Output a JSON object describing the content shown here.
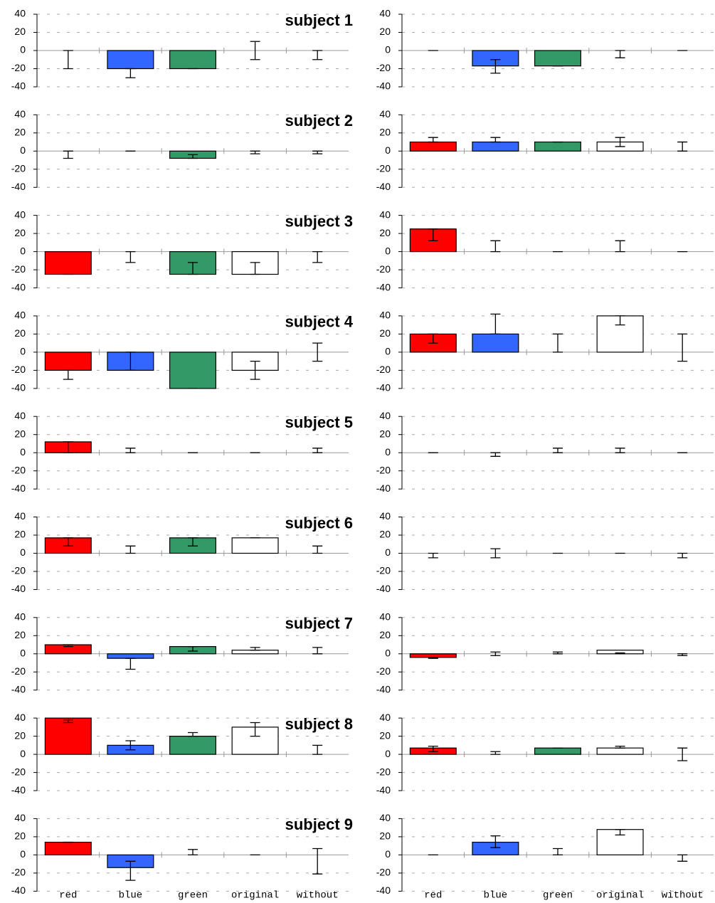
{
  "chart_data": {
    "type": "bar",
    "categories": [
      "red",
      "blue",
      "green",
      "original",
      "without"
    ],
    "colors": [
      "#ff0000",
      "#3366ff",
      "#339966",
      "#ffffff",
      "#ffffff"
    ],
    "ylim": [
      -40,
      40
    ],
    "yticks": [
      -40,
      -20,
      0,
      20,
      40
    ],
    "grid": true,
    "panels": [
      {
        "title": "subject 1",
        "values": [
          0,
          -20,
          -20,
          0,
          0
        ],
        "low": [
          -20,
          -30,
          -20,
          -10,
          -10
        ],
        "high": [
          0,
          -20,
          -20,
          10,
          0
        ]
      },
      {
        "values": [
          0,
          -17,
          -17,
          0,
          0
        ],
        "low": [
          0,
          -25,
          -17,
          -8,
          0
        ],
        "high": [
          0,
          -10,
          -17,
          0,
          0
        ]
      },
      {
        "title": "subject 2",
        "values": [
          0,
          0,
          -8,
          0,
          0
        ],
        "low": [
          -8,
          0,
          -8,
          -3,
          -3
        ],
        "high": [
          0,
          0,
          -4,
          0,
          0
        ]
      },
      {
        "values": [
          10,
          10,
          10,
          10,
          0
        ],
        "low": [
          10,
          10,
          10,
          5,
          0
        ],
        "high": [
          15,
          15,
          10,
          15,
          10
        ]
      },
      {
        "title": "subject 3",
        "values": [
          -25,
          0,
          -25,
          -25,
          0
        ],
        "low": [
          -25,
          -12,
          -25,
          -25,
          -12
        ],
        "high": [
          -25,
          0,
          -12,
          -12,
          0
        ]
      },
      {
        "values": [
          25,
          0,
          0,
          0,
          0
        ],
        "low": [
          12,
          0,
          0,
          0,
          0
        ],
        "high": [
          25,
          12,
          0,
          12,
          0
        ]
      },
      {
        "title": "subject 4",
        "values": [
          -20,
          -20,
          -40,
          -20,
          0
        ],
        "low": [
          -30,
          -20,
          -40,
          -30,
          -10
        ],
        "high": [
          -20,
          0,
          -40,
          -10,
          10
        ]
      },
      {
        "values": [
          20,
          20,
          0,
          40,
          0
        ],
        "low": [
          10,
          20,
          0,
          30,
          -10
        ],
        "high": [
          20,
          42,
          20,
          40,
          20
        ]
      },
      {
        "title": "subject 5",
        "values": [
          12,
          0,
          0,
          0,
          0
        ],
        "low": [
          0,
          0,
          0,
          0,
          0
        ],
        "high": [
          12,
          5,
          0,
          0,
          5
        ]
      },
      {
        "values": [
          0,
          0,
          0,
          0,
          0
        ],
        "low": [
          0,
          -4,
          0,
          0,
          0
        ],
        "high": [
          0,
          0,
          5,
          5,
          0
        ]
      },
      {
        "title": "subject 6",
        "values": [
          17,
          0,
          17,
          17,
          0
        ],
        "low": [
          8,
          0,
          8,
          17,
          0
        ],
        "high": [
          17,
          8,
          17,
          17,
          8
        ]
      },
      {
        "values": [
          0,
          0,
          0,
          0,
          0
        ],
        "low": [
          -5,
          -5,
          0,
          0,
          -5
        ],
        "high": [
          0,
          5,
          0,
          0,
          0
        ]
      },
      {
        "title": "subject 7",
        "values": [
          10,
          -5,
          8,
          4,
          0
        ],
        "low": [
          8,
          -17,
          3,
          4,
          0
        ],
        "high": [
          10,
          -5,
          8,
          7,
          7
        ]
      },
      {
        "values": [
          -4,
          0,
          0,
          4,
          0
        ],
        "low": [
          -5,
          -2,
          0,
          0,
          -2
        ],
        "high": [
          -4,
          2,
          2,
          1,
          0
        ]
      },
      {
        "title": "subject 8",
        "values": [
          40,
          10,
          20,
          30,
          0
        ],
        "low": [
          35,
          5,
          20,
          20,
          0
        ],
        "high": [
          38,
          15,
          24,
          35,
          10
        ]
      },
      {
        "values": [
          7,
          0,
          7,
          7,
          0
        ],
        "low": [
          3,
          0,
          7,
          7,
          -7
        ],
        "high": [
          9,
          3,
          7,
          9,
          7
        ]
      },
      {
        "title": "subject 9",
        "values": [
          14,
          -14,
          0,
          0,
          0
        ],
        "low": [
          14,
          -28,
          0,
          0,
          -21
        ],
        "high": [
          14,
          -7,
          6,
          0,
          7
        ]
      },
      {
        "values": [
          0,
          14,
          0,
          28,
          0
        ],
        "low": [
          0,
          8,
          0,
          22,
          -7
        ],
        "high": [
          0,
          21,
          7,
          28,
          0
        ]
      }
    ]
  }
}
